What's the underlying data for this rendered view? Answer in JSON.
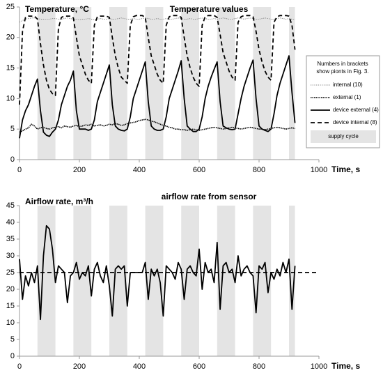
{
  "chart_data": [
    {
      "type": "line",
      "title": "Temperature values",
      "y_label": "Temperature, °C",
      "x_label": "Time, s",
      "xlim": [
        0,
        1000
      ],
      "xticks": [
        0,
        200,
        400,
        600,
        800,
        1000
      ],
      "ylim": [
        0,
        25
      ],
      "yticks": [
        0,
        5,
        10,
        15,
        20,
        25
      ],
      "grid": false,
      "legend_note": [
        "Numbers in brackets",
        "show pionts in Fig. 3."
      ],
      "shaded": {
        "name": "supply cycle",
        "color": "#e4e4e4",
        "ranges": [
          [
            60,
            120
          ],
          [
            180,
            240
          ],
          [
            300,
            360
          ],
          [
            420,
            480
          ],
          [
            540,
            600
          ],
          [
            660,
            720
          ],
          [
            780,
            840
          ],
          [
            900,
            920
          ]
        ]
      },
      "x": [
        0,
        10,
        20,
        30,
        40,
        50,
        60,
        70,
        80,
        90,
        100,
        110,
        120,
        130,
        140,
        150,
        160,
        170,
        180,
        190,
        200,
        210,
        220,
        230,
        240,
        250,
        260,
        270,
        280,
        290,
        300,
        310,
        320,
        330,
        340,
        350,
        360,
        370,
        380,
        390,
        400,
        410,
        420,
        430,
        440,
        450,
        460,
        470,
        480,
        490,
        500,
        510,
        520,
        530,
        540,
        550,
        560,
        570,
        580,
        590,
        600,
        610,
        620,
        630,
        640,
        650,
        660,
        670,
        680,
        690,
        700,
        710,
        720,
        730,
        740,
        750,
        760,
        770,
        780,
        790,
        800,
        810,
        820,
        830,
        840,
        850,
        860,
        870,
        880,
        890,
        900,
        910,
        920
      ],
      "series": [
        {
          "name": "internal (10)",
          "color": "#808080",
          "dash": "dotted",
          "values": [
            22.5,
            22.8,
            23,
            23.1,
            23.2,
            23.2,
            23.1,
            23,
            23,
            23,
            23,
            23.1,
            23.1,
            23,
            23,
            23.1,
            23.2,
            23.1,
            23,
            23,
            22.9,
            23,
            23,
            23.1,
            23,
            22.9,
            23,
            23.1,
            23,
            23,
            23.1,
            23,
            23,
            23.1,
            23.2,
            23.1,
            23,
            23,
            23.1,
            23,
            23,
            23.1,
            23.2,
            23.1,
            23,
            23,
            23.1,
            23,
            23,
            23.1,
            23,
            23,
            23.1,
            23.2,
            23.1,
            23,
            23,
            23.1,
            23,
            23,
            23.1,
            23.2,
            23.1,
            23,
            23,
            23.1,
            23,
            23.1,
            23.2,
            23.1,
            23,
            23,
            23.1,
            23.2,
            23.1,
            23,
            23.1,
            23.2,
            23.1,
            23,
            23,
            23.1,
            23.2,
            23.1,
            23,
            23,
            23.1,
            23.2,
            23.1,
            23,
            23.1,
            23,
            23
          ]
        },
        {
          "name": "external (1)",
          "color": "#000000",
          "dash": "dotted-dense",
          "values": [
            4.5,
            4.7,
            5,
            5.2,
            5.8,
            5.5,
            5,
            5.2,
            5.3,
            5.1,
            5,
            5.2,
            5.3,
            5.4,
            5.2,
            5.5,
            5.4,
            5.3,
            5.5,
            5.6,
            5.4,
            5.5,
            5.7,
            5.6,
            5.8,
            5.5,
            5.6,
            5.7,
            5.5,
            5.6,
            5.8,
            5.7,
            5.9,
            5.8,
            5.6,
            5.7,
            5.9,
            6.0,
            6.1,
            6.2,
            6.4,
            6.5,
            6.6,
            6.5,
            6.3,
            6.2,
            6.0,
            5.8,
            5.6,
            5.5,
            5.3,
            5.2,
            5.0,
            5.0,
            4.9,
            4.9,
            4.8,
            4.9,
            5.0,
            4.9,
            4.8,
            4.9,
            5.0,
            5.1,
            5.2,
            5.3,
            5.2,
            5.1,
            5.0,
            5.1,
            5.2,
            5.3,
            5.2,
            5.1,
            5.0,
            5.1,
            5.2,
            5.3,
            5.2,
            5.1,
            5.0,
            5.0,
            4.9,
            5.0,
            5.1,
            5.2,
            5.3,
            5.2,
            5.1,
            5.0,
            5.1,
            5.2,
            5.1
          ]
        },
        {
          "name": "device external (4)",
          "color": "#000000",
          "dash": "solid",
          "values": [
            3.5,
            6.5,
            8,
            9,
            10.5,
            12,
            13.2,
            8,
            4.5,
            4,
            3.8,
            4.5,
            5,
            6.5,
            9,
            10.5,
            12,
            13,
            14.5,
            8,
            5,
            5,
            5,
            4.8,
            5,
            6.5,
            9.5,
            11,
            12.5,
            14,
            15.5,
            9,
            5.5,
            5,
            4.8,
            4.7,
            5,
            7,
            10,
            11.5,
            13,
            14.5,
            16,
            9.5,
            5.5,
            5,
            4.8,
            4.8,
            5,
            7,
            10,
            11.5,
            13,
            14.5,
            16.2,
            10,
            5.5,
            5,
            4.6,
            4.6,
            5,
            7,
            10,
            12,
            13.5,
            14.8,
            16,
            9.5,
            5.5,
            5.2,
            5,
            4.9,
            5,
            7.5,
            10,
            12,
            13.5,
            15,
            16.3,
            10,
            5.5,
            5,
            4.8,
            4.6,
            5,
            7.5,
            10.5,
            12.5,
            14,
            15.5,
            17,
            11,
            6
          ]
        },
        {
          "name": "device internal (8)",
          "color": "#000000",
          "dash": "dashed",
          "values": [
            9,
            21,
            23.3,
            23.5,
            23.5,
            23.5,
            23,
            19,
            15.5,
            13,
            11.5,
            10.8,
            10.5,
            21.5,
            23.3,
            23.5,
            23.5,
            23.5,
            23.2,
            20,
            17,
            15.5,
            14,
            13,
            12.5,
            22,
            23.4,
            23.5,
            23.5,
            23.5,
            23.3,
            20,
            17,
            15,
            13.5,
            13,
            12.5,
            22,
            23.4,
            23.6,
            23.6,
            23.6,
            23.3,
            20,
            17,
            15.5,
            14,
            13,
            12.5,
            22,
            23.4,
            23.6,
            23.6,
            23.6,
            23.3,
            20,
            17,
            15,
            13.5,
            12.5,
            12,
            22,
            23.4,
            23.6,
            23.6,
            23.6,
            23.3,
            20.5,
            17.5,
            16,
            14.5,
            13.5,
            13,
            22.5,
            23.4,
            23.6,
            23.6,
            23.6,
            23.4,
            21,
            18,
            16,
            14.5,
            13.5,
            13,
            22.5,
            23.4,
            23.6,
            23.6,
            23.6,
            23.5,
            22,
            18
          ]
        }
      ]
    },
    {
      "type": "line",
      "title": "airflow rate from sensor",
      "y_label": "Airflow rate, m³/h",
      "x_label": "Time, s",
      "xlim": [
        0,
        1000
      ],
      "xticks": [
        0,
        200,
        400,
        600,
        800,
        1000
      ],
      "ylim": [
        0,
        45
      ],
      "yticks": [
        0,
        5,
        10,
        15,
        20,
        25,
        30,
        35,
        40,
        45
      ],
      "grid": false,
      "hline": 25,
      "shaded": {
        "color": "#e4e4e4",
        "ranges": [
          [
            60,
            120
          ],
          [
            180,
            240
          ],
          [
            300,
            360
          ],
          [
            420,
            480
          ],
          [
            540,
            600
          ],
          [
            660,
            720
          ],
          [
            780,
            840
          ],
          [
            900,
            920
          ]
        ]
      },
      "x": [
        0,
        10,
        20,
        30,
        40,
        50,
        60,
        70,
        80,
        90,
        100,
        110,
        120,
        130,
        140,
        150,
        160,
        170,
        180,
        190,
        200,
        210,
        220,
        230,
        240,
        250,
        260,
        270,
        280,
        290,
        300,
        310,
        320,
        330,
        340,
        350,
        360,
        370,
        380,
        390,
        400,
        410,
        420,
        430,
        440,
        450,
        460,
        470,
        480,
        490,
        500,
        510,
        520,
        530,
        540,
        550,
        560,
        570,
        580,
        590,
        600,
        610,
        620,
        630,
        640,
        650,
        660,
        670,
        680,
        690,
        700,
        710,
        720,
        730,
        740,
        750,
        760,
        770,
        780,
        790,
        800,
        810,
        820,
        830,
        840,
        850,
        860,
        870,
        880,
        890,
        900,
        910,
        920
      ],
      "series": [
        {
          "color": "#000000",
          "dash": "solid",
          "values": [
            29,
            17,
            24,
            21,
            25,
            22,
            27,
            11,
            30,
            39,
            38,
            32,
            22,
            27,
            26,
            25,
            16,
            24,
            25,
            28,
            23,
            25,
            24,
            27,
            18,
            26,
            28,
            24,
            22,
            27,
            21,
            12,
            26,
            27,
            26,
            27,
            15,
            25,
            25,
            25,
            25,
            25,
            28,
            17,
            26,
            24,
            26,
            22,
            12,
            27,
            26,
            25,
            23,
            28,
            26,
            17,
            26,
            27,
            25,
            24,
            32,
            20,
            28,
            25,
            26,
            22,
            34,
            14,
            27,
            28,
            25,
            26,
            22,
            30,
            24,
            26,
            27,
            25,
            24,
            13,
            27,
            26,
            28,
            19,
            25,
            23,
            26,
            24,
            28,
            25,
            29,
            14,
            27
          ]
        }
      ]
    }
  ]
}
